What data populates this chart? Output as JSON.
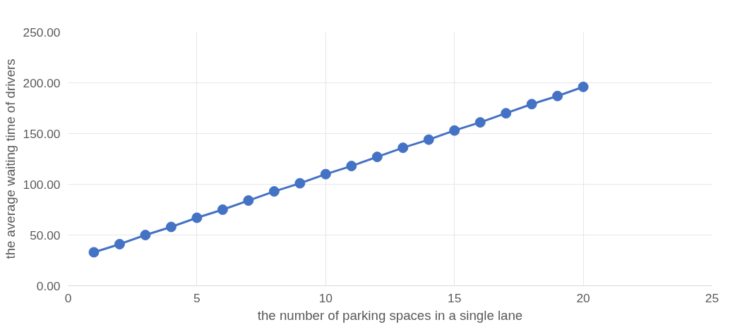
{
  "chart_data": {
    "type": "line",
    "xlabel": "the number of parking spaces in a single lane",
    "ylabel": "the average waiting time of drivers",
    "x": [
      1,
      2,
      3,
      4,
      5,
      6,
      7,
      8,
      9,
      10,
      11,
      12,
      13,
      14,
      15,
      16,
      17,
      18,
      19,
      20
    ],
    "series": [
      {
        "color": "#4472c4",
        "values": [
          33,
          41,
          50,
          58,
          67,
          75,
          84,
          93,
          101,
          110,
          118,
          127,
          136,
          144,
          153,
          161,
          170,
          179,
          187,
          196
        ]
      }
    ],
    "xlim": [
      0,
      25
    ],
    "xticks": [
      0,
      5,
      10,
      15,
      20,
      25
    ],
    "ylim": [
      0,
      250
    ],
    "yticks": [
      {
        "value": 0,
        "label": "0.00"
      },
      {
        "value": 50,
        "label": "50.00"
      },
      {
        "value": 100,
        "label": "100.00"
      },
      {
        "value": 150,
        "label": "150.00"
      },
      {
        "value": 200,
        "label": "200.00"
      },
      {
        "value": 250,
        "label": "250.00"
      }
    ],
    "grid": true,
    "marker": "circle",
    "line_style": "solid"
  }
}
